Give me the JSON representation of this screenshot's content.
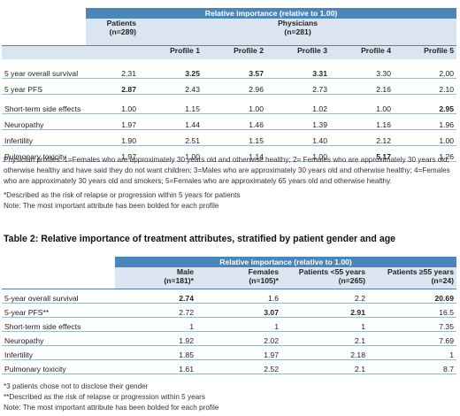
{
  "table1": {
    "banner": "Relative importance (relative to 1.00)",
    "patients_header": "Patients",
    "patients_n": "(n=289)",
    "physicians_header": "Physicians",
    "physicians_n": "(n=281)",
    "profiles": [
      "Profile 1",
      "Profile 2",
      "Profile 3",
      "Profile 4",
      "Profile 5"
    ],
    "rows": [
      {
        "label": "5 year overall survival",
        "values": [
          "2.31",
          "3.25",
          "3.57",
          "3.31",
          "3.30",
          "2.00"
        ]
      },
      {
        "label": "5 year PFS",
        "values": [
          "2.87",
          "2.43",
          "2.96",
          "2.73",
          "2.16",
          "2.10"
        ]
      },
      {
        "label": "Short-term side effects",
        "values": [
          "1.00",
          "1.15",
          "1.00",
          "1.02",
          "1.00",
          "2.95"
        ]
      },
      {
        "label": "Neuropathy",
        "values": [
          "1.97",
          "1.44",
          "1.46",
          "1.39",
          "1.16",
          "1.96"
        ]
      },
      {
        "label": "Infertility",
        "values": [
          "1.90",
          "2.51",
          "1.15",
          "1.40",
          "2.12",
          "1.00"
        ]
      },
      {
        "label": "Pulmonary toxicity",
        "values": [
          "1.97",
          "1.00",
          "1.14",
          "1.00",
          "5.17",
          "1.26"
        ]
      }
    ],
    "notes": [
      "Physician profiles: 1=Females who are approximately 30 years old and otherwise healthy; 2= Females who are approximately 30 years old, otherwise healthy and have said they do not want children; 3=Males who are approximately 30 years old and otherwise healthy; 4=Females who are approximately 30 years old and smokers; 5=Females who are approximately 65 years old and otherwise healthy.",
      "*Described as the risk of relapse or progression within 5 years for patients",
      "Note: The most important attribute has been bolded for each profile"
    ]
  },
  "table2": {
    "title": "Table 2: Relative importance of treatment attributes, stratified  by patient gender and age",
    "banner": "Relative importance (relative to 1.00)",
    "columns": [
      {
        "name": "Male",
        "n": "(n=181)*"
      },
      {
        "name": "Females",
        "n": "(n=105)*"
      },
      {
        "name": "Patients <55 years",
        "n": "(n=265)"
      },
      {
        "name": "Patients ≥55 years",
        "n": "(n=24)"
      }
    ],
    "rows": [
      {
        "label": "5-year overall survival",
        "values": [
          "2.74",
          "1.6",
          "2.2",
          "20.69"
        ]
      },
      {
        "label": "5-year PFS**",
        "values": [
          "2.72",
          "3.07",
          "2.91",
          "16.5"
        ]
      },
      {
        "label": "Short-term side effects",
        "values": [
          "1",
          "1",
          "1",
          "7.35"
        ]
      },
      {
        "label": "Neuropathy",
        "values": [
          "1.92",
          "2.02",
          "2.1",
          "7.69"
        ]
      },
      {
        "label": "Infertility",
        "values": [
          "1.85",
          "1.97",
          "2.18",
          "1"
        ]
      },
      {
        "label": "Pulmonary toxicity",
        "values": [
          "1.61",
          "2.52",
          "2.1",
          "8.7"
        ]
      }
    ],
    "notes": [
      "*3 patients chose not to disclose their gender",
      "**Described as the risk of relapse or progression within 5 years",
      "Note: The most important attribute has been bolded for each profile"
    ]
  }
}
